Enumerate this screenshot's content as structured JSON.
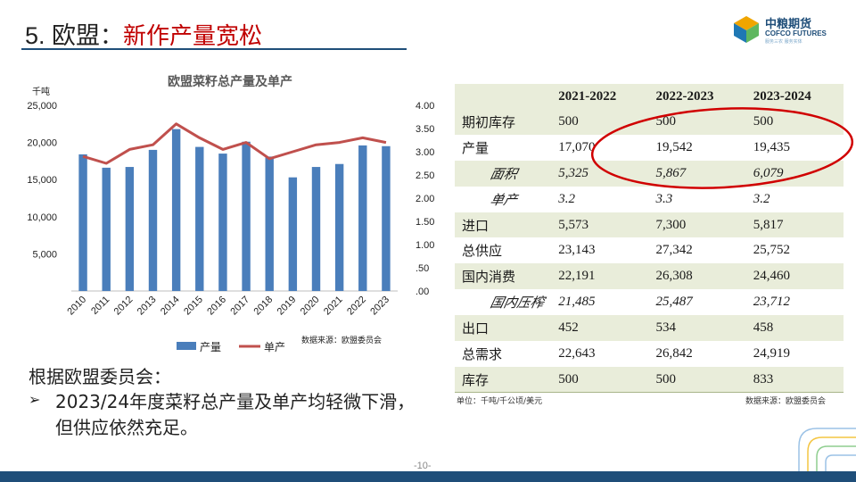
{
  "title": {
    "number": "5. 欧盟",
    "separator": "：",
    "highlight": "新作产量宽松"
  },
  "logo": {
    "cn": "中粮期货",
    "en": "COFCO FUTURES",
    "sub": "服务三农 服务实体"
  },
  "colors": {
    "bar": "#4a7ebb",
    "line": "#c0504d",
    "accent_red": "#c00000",
    "brand_blue": "#1f4e79",
    "table_shade": "#e9edda"
  },
  "chart_data": {
    "type": "bar",
    "title": "欧盟菜籽总产量及单产",
    "left_unit": "千吨",
    "categories": [
      "2010",
      "2011",
      "2012",
      "2013",
      "2014",
      "2015",
      "2016",
      "2017",
      "2018",
      "2019",
      "2020",
      "2021",
      "2022",
      "2023"
    ],
    "series": [
      {
        "name": "产量",
        "type": "bar",
        "axis": "left",
        "values": [
          18400,
          16600,
          16700,
          19000,
          21800,
          19400,
          18500,
          20100,
          18100,
          15300,
          16700,
          17100,
          19600,
          19500
        ]
      },
      {
        "name": "单产",
        "type": "line",
        "axis": "right",
        "values": [
          2.9,
          2.75,
          3.05,
          3.15,
          3.6,
          3.3,
          3.05,
          3.2,
          2.85,
          3.0,
          3.15,
          3.2,
          3.3,
          3.2
        ]
      }
    ],
    "ylim_left": [
      0,
      25000
    ],
    "ylim_right": [
      0,
      4.0
    ],
    "y_ticks_left": [
      "25,000",
      "20,000",
      "15,000",
      "10,000",
      "5,000"
    ],
    "y_ticks_right": [
      "4.00",
      "3.50",
      "3.00",
      "2.50",
      "2.00",
      "1.50",
      "1.00",
      ".50",
      ".00"
    ],
    "legend_position": "bottom",
    "source": "数据来源：欧盟委员会"
  },
  "table": {
    "headers": [
      "",
      "2021-2022",
      "2022-2023",
      "2023-2024"
    ],
    "rows": [
      {
        "label": "期初库存",
        "values": [
          "500",
          "500",
          "500"
        ],
        "sub": false
      },
      {
        "label": "产量",
        "values": [
          "17,070",
          "19,542",
          "19,435"
        ],
        "sub": false
      },
      {
        "label": "面积",
        "values": [
          "5,325",
          "5,867",
          "6,079"
        ],
        "sub": true
      },
      {
        "label": "单产",
        "values": [
          "3.2",
          "3.3",
          "3.2"
        ],
        "sub": true
      },
      {
        "label": "进口",
        "values": [
          "5,573",
          "7,300",
          "5,817"
        ],
        "sub": false
      },
      {
        "label": "总供应",
        "values": [
          "23,143",
          "27,342",
          "25,752"
        ],
        "sub": false
      },
      {
        "label": "国内消费",
        "values": [
          "22,191",
          "26,308",
          "24,460"
        ],
        "sub": false
      },
      {
        "label": "国内压榨",
        "values": [
          "21,485",
          "25,487",
          "23,712"
        ],
        "sub": true
      },
      {
        "label": "出口",
        "values": [
          "452",
          "534",
          "458"
        ],
        "sub": false
      },
      {
        "label": "总需求",
        "values": [
          "22,643",
          "26,842",
          "24,919"
        ],
        "sub": false
      },
      {
        "label": "库存",
        "values": [
          "500",
          "500",
          "833"
        ],
        "sub": false
      }
    ],
    "unit_note": "单位：千吨/千公顷/美元",
    "source": "数据来源：欧盟委员会"
  },
  "body": {
    "intro": "根据欧盟委员会：",
    "bullet_marker": "➢",
    "bullet": "2023/24年度菜籽总产量及单产均轻微下滑，但供应依然充足。"
  },
  "footer": {
    "page": "-10-"
  }
}
